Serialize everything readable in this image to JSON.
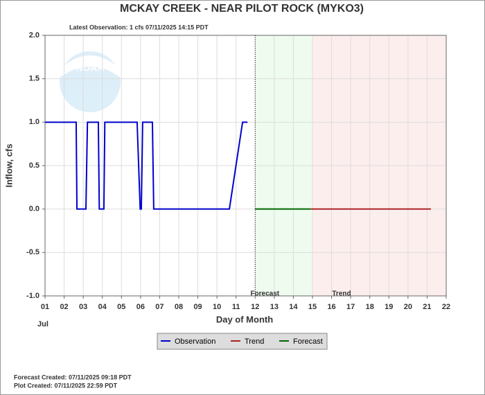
{
  "chart_data": {
    "type": "line",
    "title": "MCKAY CREEK - NEAR PILOT ROCK  (MYKO3)",
    "subtitle": "Latest Observation: 1 cfs 07/11/2025 14:15 PDT",
    "y_label": "Inflow, cfs",
    "x_label": "Day of Month",
    "x_sublabel": "Jul",
    "logo_text": "NOAA",
    "xlim": [
      1,
      22
    ],
    "ylim": [
      -1,
      2
    ],
    "xticks": [
      {
        "value": 1,
        "label": "01"
      },
      {
        "value": 2,
        "label": "02"
      },
      {
        "value": 3,
        "label": "03"
      },
      {
        "value": 4,
        "label": "04"
      },
      {
        "value": 5,
        "label": "05"
      },
      {
        "value": 6,
        "label": "06"
      },
      {
        "value": 7,
        "label": "07"
      },
      {
        "value": 8,
        "label": "08"
      },
      {
        "value": 9,
        "label": "09"
      },
      10,
      11,
      12,
      13,
      14,
      15,
      16,
      17,
      18,
      19,
      20,
      21,
      22
    ],
    "yticks": [
      {
        "value": -1,
        "label": "-1.0"
      },
      {
        "value": -0.5,
        "label": "-0.5"
      },
      {
        "value": 0,
        "label": "0.0"
      },
      {
        "value": 0.5,
        "label": "0.5"
      },
      {
        "value": 1,
        "label": "1.0"
      },
      {
        "value": 1.5,
        "label": "1.5"
      },
      {
        "value": 2,
        "label": "2.0"
      }
    ],
    "grid": true,
    "regions": [
      {
        "name": "Forecast",
        "range": [
          12,
          15
        ],
        "color": "#eefbee"
      },
      {
        "name": "Trend",
        "range": [
          15,
          22
        ],
        "color": "#fdeeee"
      }
    ],
    "series": [
      {
        "name": "Observation",
        "color": "#0000cc",
        "x": [
          1,
          2.63,
          2.67,
          3.14,
          3.22,
          3.79,
          3.84,
          4.08,
          4.13,
          5.82,
          5.98,
          6.04,
          6.11,
          6.62,
          6.69,
          10.65,
          11.34,
          11.6
        ],
        "values": [
          1,
          1,
          0,
          0,
          1,
          1,
          0,
          0,
          1,
          1,
          0,
          0,
          1,
          1,
          0,
          0,
          1,
          1
        ]
      },
      {
        "name": "Trend",
        "color": "#aa2222",
        "x": [
          14.9,
          21.2
        ],
        "values": [
          0,
          0
        ]
      },
      {
        "name": "Forecast",
        "color": "#006600",
        "x": [
          12,
          14.9
        ],
        "values": [
          0,
          0
        ]
      }
    ],
    "footer": [
      "Forecast Created: 07/11/2025 09:18 PDT",
      "Plot Created: 07/11/2025 22:59 PDT"
    ]
  }
}
